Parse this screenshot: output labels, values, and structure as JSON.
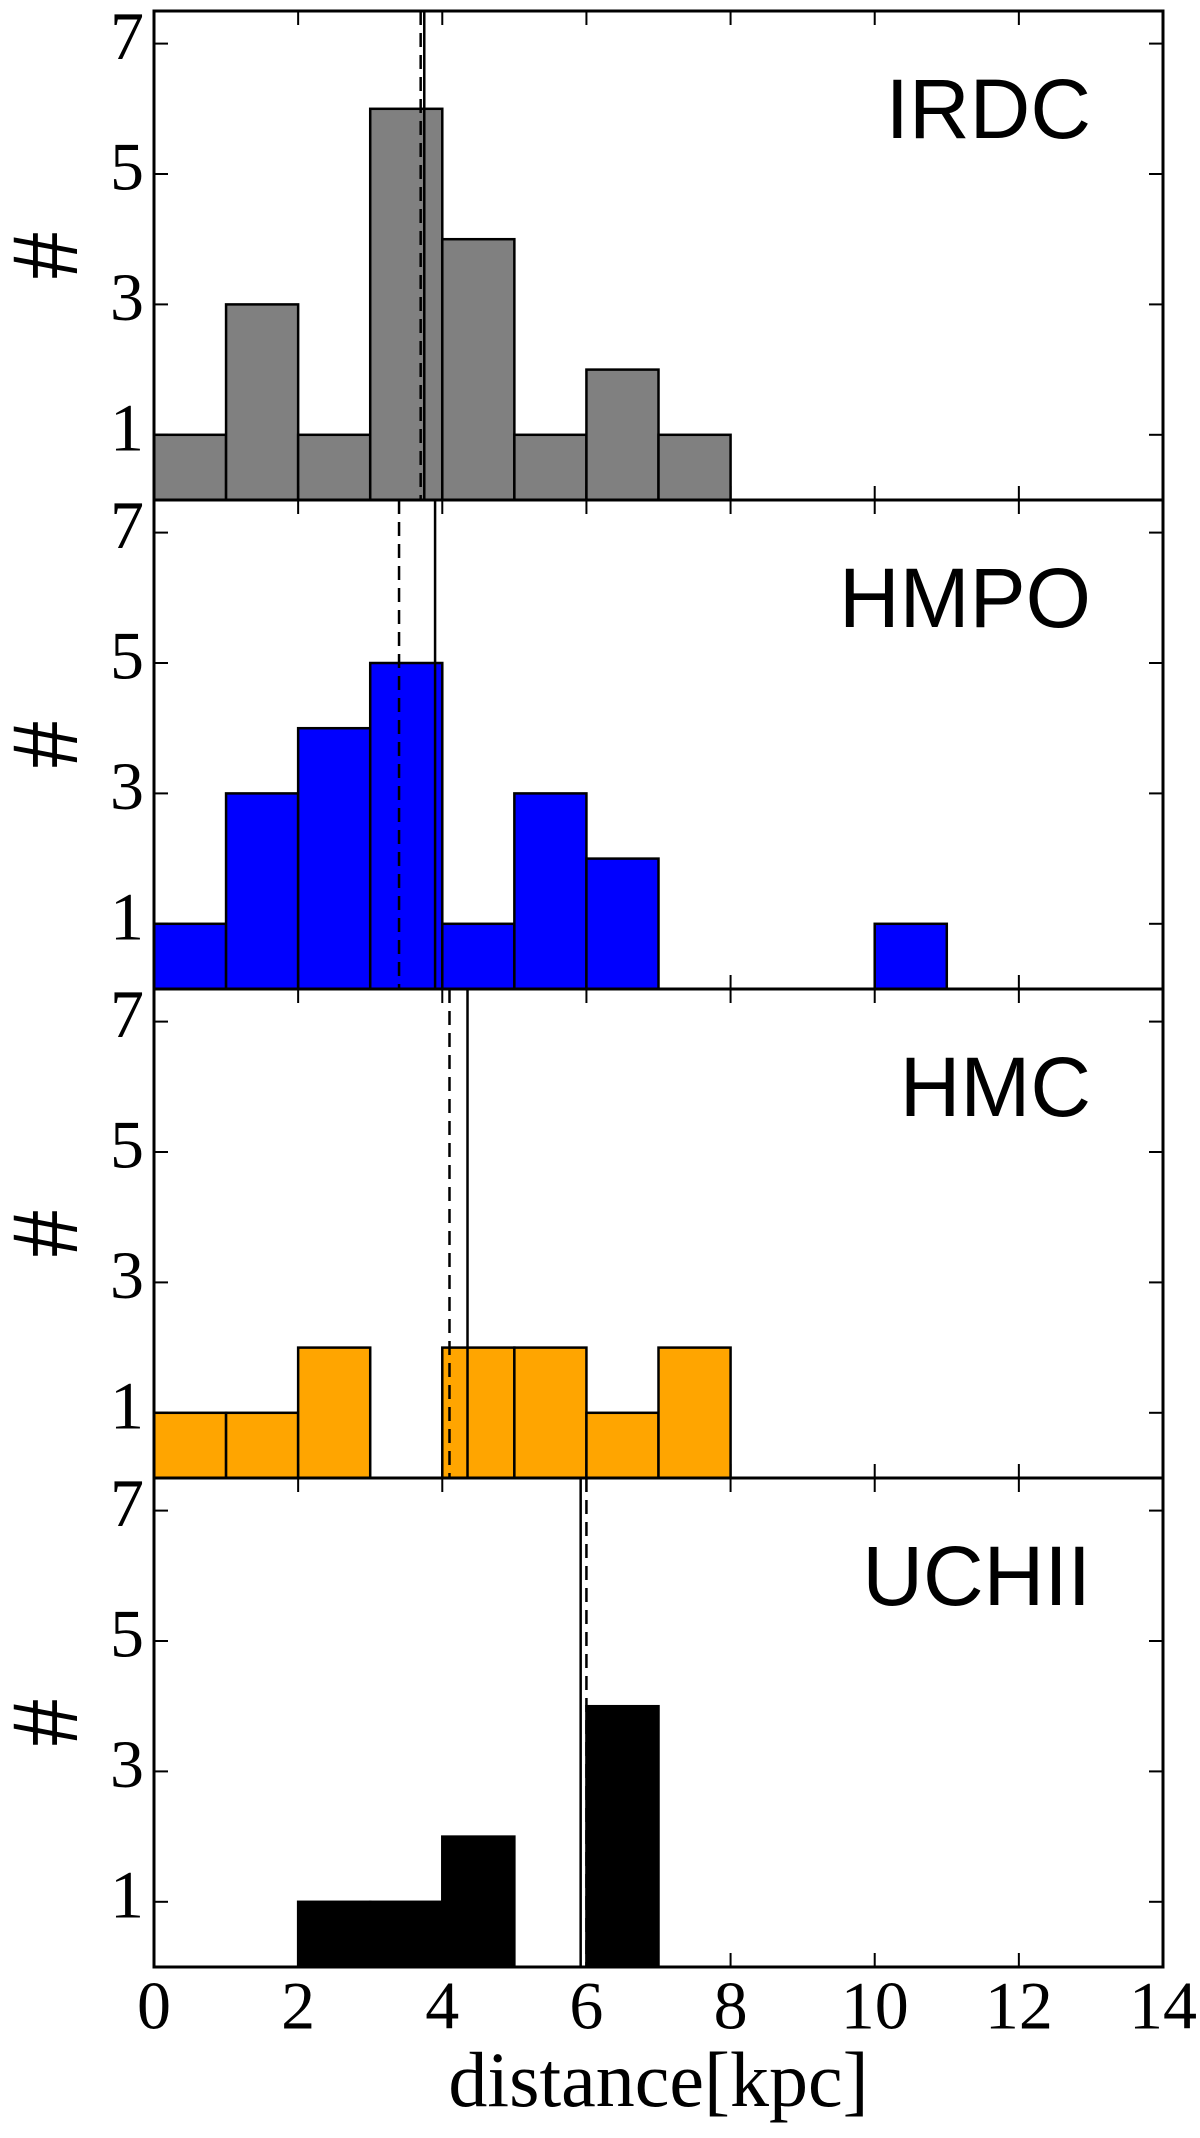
{
  "chart_data": [
    {
      "type": "histogram",
      "label": "IRDC",
      "ylabel": "#",
      "color": "#808080",
      "bins": [
        0,
        1,
        2,
        3,
        4,
        5,
        6,
        7,
        8
      ],
      "values": [
        1,
        3,
        1,
        6,
        4,
        1,
        2,
        1
      ],
      "solid_line": 3.75,
      "dashed_line": 3.7,
      "xlim": [
        0,
        14
      ],
      "ylim": [
        0,
        7.5
      ],
      "yticks": [
        1,
        3,
        5,
        7
      ]
    },
    {
      "type": "histogram",
      "label": "HMPO",
      "ylabel": "#",
      "color": "#0000ff",
      "bins": [
        0,
        1,
        2,
        3,
        4,
        5,
        6,
        7,
        8,
        9,
        10,
        11
      ],
      "values": [
        1,
        3,
        4,
        5,
        1,
        3,
        2,
        0,
        0,
        0,
        1
      ],
      "solid_line": 3.9,
      "dashed_line": 3.4,
      "xlim": [
        0,
        14
      ],
      "ylim": [
        0,
        7.5
      ],
      "yticks": [
        1,
        3,
        5,
        7
      ]
    },
    {
      "type": "histogram",
      "label": "HMC",
      "ylabel": "#",
      "color": "#ffa500",
      "bins": [
        0,
        1,
        2,
        3,
        4,
        5,
        6,
        7,
        8
      ],
      "values": [
        1,
        1,
        2,
        0,
        2,
        2,
        1,
        2
      ],
      "solid_line": 4.35,
      "dashed_line": 4.1,
      "xlim": [
        0,
        14
      ],
      "ylim": [
        0,
        7.5
      ],
      "yticks": [
        1,
        3,
        5,
        7
      ]
    },
    {
      "type": "histogram",
      "label": "UCHII",
      "ylabel": "#",
      "color": "#000000",
      "bins": [
        0,
        1,
        2,
        3,
        4,
        5,
        6,
        7
      ],
      "values": [
        0,
        0,
        1,
        1,
        2,
        0,
        4
      ],
      "solid_line": 5.92,
      "dashed_line": 6.0,
      "xlim": [
        0,
        14
      ],
      "ylim": [
        0,
        7.5
      ],
      "yticks": [
        1,
        3,
        5,
        7
      ],
      "xticks": [
        0,
        2,
        4,
        6,
        8,
        10,
        12,
        14
      ],
      "xlabel": "distance[kpc]"
    }
  ]
}
